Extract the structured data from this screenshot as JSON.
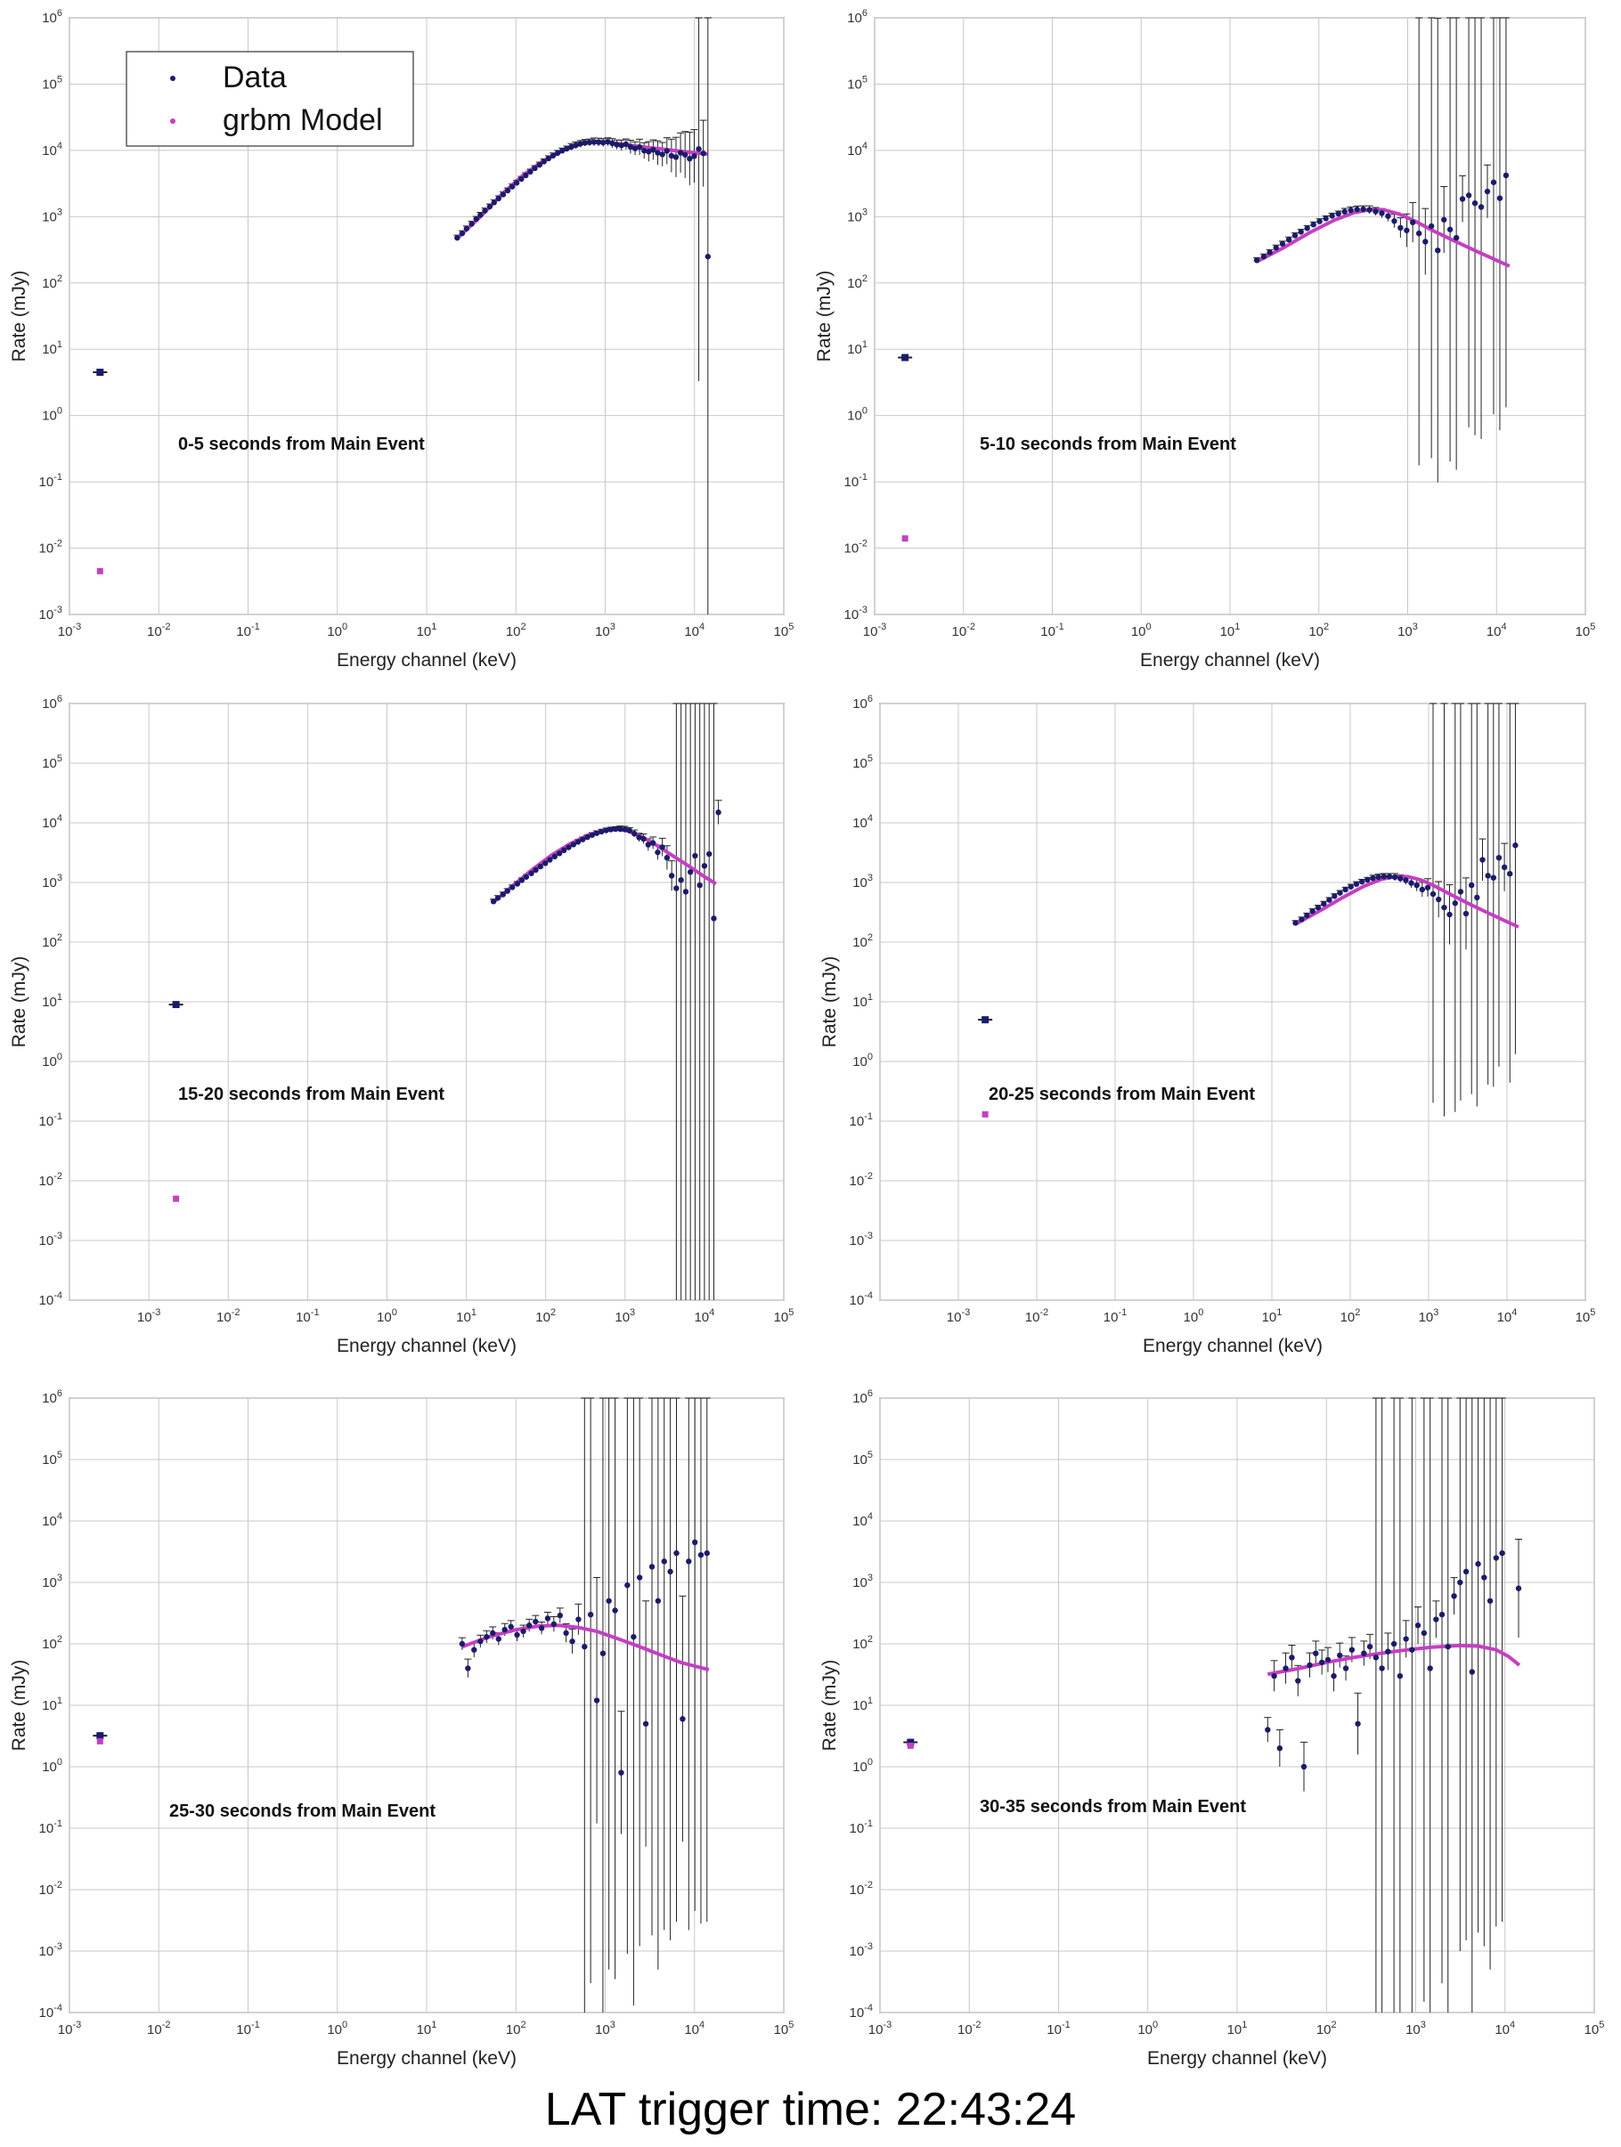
{
  "caption": "LAT trigger time: 22:43:24",
  "colors": {
    "data": "#1b1b6b",
    "model": "#c43fc4",
    "error": "#222222",
    "grid": "#c8c8c8",
    "axis": "#555555"
  },
  "legend": {
    "data_label": "Data",
    "model_label": "grbm Model"
  },
  "chart_data": [
    {
      "type": "scatter",
      "title": "0-5 seconds from Main Event",
      "xlabel": "Energy channel (keV)",
      "ylabel": "Rate (mJy)",
      "xscale": "log",
      "yscale": "log",
      "xlim_exp": [
        -3,
        5
      ],
      "ylim_exp": [
        -3,
        6
      ],
      "x_tick_labels": [
        "10-3",
        "10-2",
        "10-1",
        "100",
        "101",
        "102",
        "103",
        "104",
        "105"
      ],
      "y_tick_labels": [
        "10-3",
        "10-2",
        "10-1",
        "100",
        "101",
        "102",
        "103",
        "104",
        "105",
        "106"
      ],
      "legend": true,
      "isolated_data": [
        {
          "x": 0.0022,
          "y": 4.5
        }
      ],
      "isolated_model": [
        {
          "x": 0.0022,
          "y": 0.0045
        }
      ],
      "data_x": [
        22,
        25,
        28,
        32,
        36,
        40,
        45,
        51,
        57,
        64,
        72,
        81,
        91,
        102,
        115,
        129,
        145,
        163,
        184,
        206,
        232,
        261,
        293,
        330,
        371,
        417,
        469,
        527,
        593,
        667,
        750,
        843,
        948,
        1070,
        1200,
        1350,
        1520,
        1710,
        1920,
        2160,
        2430,
        2730,
        3070,
        3450,
        3880,
        4370,
        4910,
        5520,
        6210,
        6980,
        7850,
        8830,
        9930,
        11170,
        12560,
        14130
      ],
      "data_y": [
        480,
        560,
        660,
        780,
        920,
        1060,
        1230,
        1420,
        1640,
        1880,
        2160,
        2480,
        2840,
        3240,
        3700,
        4200,
        4760,
        5380,
        6060,
        6780,
        7560,
        8340,
        9120,
        9880,
        10600,
        11300,
        11950,
        12550,
        13000,
        13200,
        13400,
        13300,
        13100,
        13500,
        12800,
        12200,
        11900,
        12400,
        11300,
        10700,
        11200,
        9900,
        9600,
        10200,
        9200,
        8700,
        9800,
        8300,
        7900,
        9200,
        8600,
        7500,
        8200,
        10500,
        9000,
        250
      ],
      "data_err": [
        0.04,
        0.04,
        0.04,
        0.04,
        0.04,
        0.04,
        0.04,
        0.04,
        0.04,
        0.04,
        0.04,
        0.04,
        0.04,
        0.04,
        0.04,
        0.04,
        0.04,
        0.04,
        0.04,
        0.04,
        0.04,
        0.04,
        0.04,
        0.04,
        0.04,
        0.05,
        0.05,
        0.05,
        0.05,
        0.05,
        0.06,
        0.06,
        0.06,
        0.06,
        0.07,
        0.07,
        0.08,
        0.08,
        0.1,
        0.1,
        0.12,
        0.12,
        0.15,
        0.15,
        0.18,
        0.18,
        0.2,
        0.25,
        0.3,
        0.3,
        0.35,
        0.4,
        0.4,
        3.5,
        0.5,
        9.0
      ],
      "model_x": [
        22,
        40,
        70,
        120,
        200,
        350,
        550,
        800,
        1100,
        1600,
        2500,
        4000,
        6500,
        10000,
        14000
      ],
      "model_y": [
        470,
        1000,
        2200,
        4200,
        6900,
        10300,
        12700,
        13600,
        13300,
        12300,
        11400,
        10600,
        9800,
        9200,
        8800
      ]
    },
    {
      "type": "scatter",
      "title": "5-10 seconds from Main Event",
      "xlabel": "Energy channel (keV)",
      "ylabel": "Rate (mJy)",
      "xscale": "log",
      "yscale": "log",
      "xlim_exp": [
        -3,
        5
      ],
      "ylim_exp": [
        -3,
        6
      ],
      "x_tick_labels": [
        "10-3",
        "10-2",
        "10-1",
        "100",
        "101",
        "102",
        "103",
        "104",
        "105"
      ],
      "y_tick_labels": [
        "10-3",
        "10-2",
        "10-1",
        "100",
        "101",
        "102",
        "103",
        "104",
        "105",
        "106"
      ],
      "legend": false,
      "isolated_data": [
        {
          "x": 0.0022,
          "y": 7.5
        }
      ],
      "isolated_model": [
        {
          "x": 0.0022,
          "y": 0.014
        }
      ],
      "data_x": [
        20,
        24,
        28,
        33,
        39,
        46,
        54,
        63,
        74,
        87,
        102,
        120,
        141,
        166,
        195,
        229,
        269,
        316,
        371,
        436,
        512,
        601,
        706,
        829,
        974,
        1140,
        1340,
        1580,
        1850,
        2180,
        2560,
        3000,
        3530,
        4140,
        4870,
        5720,
        6720,
        7890,
        9270,
        10890,
        12790
      ],
      "data_y": [
        220,
        250,
        290,
        340,
        390,
        450,
        520,
        590,
        670,
        760,
        850,
        940,
        1030,
        1110,
        1190,
        1250,
        1290,
        1300,
        1270,
        1200,
        1130,
        1020,
        860,
        680,
        620,
        820,
        560,
        420,
        720,
        310,
        900,
        640,
        480,
        1850,
        2100,
        1600,
        1400,
        2400,
        3300,
        1900,
        4200
      ],
      "data_err": [
        0.04,
        0.04,
        0.04,
        0.04,
        0.04,
        0.04,
        0.04,
        0.04,
        0.04,
        0.04,
        0.04,
        0.04,
        0.04,
        0.04,
        0.05,
        0.05,
        0.05,
        0.05,
        0.06,
        0.06,
        0.07,
        0.08,
        0.1,
        0.15,
        0.25,
        0.3,
        3.5,
        0.5,
        3.5,
        3.5,
        0.5,
        3.5,
        3.5,
        0.35,
        3.5,
        3.5,
        3.5,
        0.4,
        3.5,
        3.5,
        3.5
      ],
      "model_x": [
        20,
        40,
        80,
        150,
        250,
        380,
        550,
        800,
        1200,
        2000,
        3500,
        6000,
        10000,
        14000
      ],
      "model_y": [
        210,
        340,
        580,
        890,
        1150,
        1280,
        1260,
        1100,
        860,
        600,
        420,
        300,
        220,
        180
      ]
    },
    {
      "type": "scatter",
      "title": "15-20 seconds from Main Event",
      "xlabel": "Energy channel (keV)",
      "ylabel": "Rate (mJy)",
      "xscale": "log",
      "yscale": "log",
      "xlim_exp": [
        -4,
        5
      ],
      "ylim_exp": [
        -4,
        6
      ],
      "x_tick_labels": [
        "10-3",
        "10-2",
        "10-1",
        "100",
        "101",
        "102",
        "103",
        "104",
        "105"
      ],
      "y_tick_labels": [
        "10-4",
        "10-3",
        "10-2",
        "10-1",
        "100",
        "101",
        "102",
        "103",
        "104",
        "105",
        "106"
      ],
      "legend": false,
      "isolated_data": [
        {
          "x": 0.0022,
          "y": 9
        }
      ],
      "isolated_model": [
        {
          "x": 0.0022,
          "y": 0.005
        }
      ],
      "data_x": [
        22,
        25,
        29,
        33,
        38,
        44,
        50,
        57,
        66,
        75,
        86,
        99,
        113,
        130,
        149,
        170,
        195,
        224,
        256,
        293,
        336,
        385,
        441,
        505,
        578,
        662,
        759,
        869,
        995,
        1140,
        1310,
        1500,
        1710,
        1960,
        2250,
        2580,
        2950,
        3380,
        3870,
        4430,
        5080,
        5820,
        6660,
        7630,
        8740,
        10010,
        11470,
        13140,
        15000
      ],
      "data_y": [
        480,
        550,
        630,
        720,
        830,
        950,
        1090,
        1240,
        1420,
        1620,
        1850,
        2100,
        2400,
        2720,
        3070,
        3460,
        3880,
        4320,
        4790,
        5270,
        5760,
        6240,
        6700,
        7110,
        7460,
        7720,
        7860,
        7880,
        7760,
        7400,
        6600,
        5700,
        5400,
        4300,
        4600,
        3200,
        3900,
        2600,
        1300,
        800,
        1100,
        700,
        1500,
        2800,
        900,
        1900,
        3000,
        250,
        15000
      ],
      "data_err": [
        0.04,
        0.04,
        0.04,
        0.04,
        0.04,
        0.04,
        0.04,
        0.04,
        0.04,
        0.04,
        0.04,
        0.04,
        0.04,
        0.04,
        0.04,
        0.04,
        0.04,
        0.04,
        0.04,
        0.04,
        0.04,
        0.04,
        0.04,
        0.04,
        0.04,
        0.04,
        0.04,
        0.05,
        0.05,
        0.05,
        0.06,
        0.07,
        0.08,
        0.1,
        0.1,
        0.12,
        0.15,
        0.2,
        0.25,
        9,
        9,
        9,
        9,
        9,
        9,
        9,
        9,
        9,
        0.2
      ],
      "model_x": [
        22,
        40,
        70,
        120,
        200,
        350,
        550,
        800,
        1100,
        1600,
        2500,
        4000,
        6500,
        10000,
        14000
      ],
      "model_y": [
        470,
        920,
        1700,
        2900,
        4400,
        6300,
        7500,
        7800,
        7300,
        5900,
        4200,
        2800,
        1850,
        1250,
        950
      ]
    },
    {
      "type": "scatter",
      "title": "20-25 seconds from Main Event",
      "xlabel": "Energy channel (keV)",
      "ylabel": "Rate (mJy)",
      "xscale": "log",
      "yscale": "log",
      "xlim_exp": [
        -4,
        5
      ],
      "ylim_exp": [
        -4,
        6
      ],
      "x_tick_labels": [
        "10-3",
        "10-2",
        "10-1",
        "100",
        "101",
        "102",
        "103",
        "104",
        "105"
      ],
      "y_tick_labels": [
        "10-4",
        "10-3",
        "10-2",
        "10-1",
        "100",
        "101",
        "102",
        "103",
        "104",
        "105",
        "106"
      ],
      "legend": false,
      "isolated_data": [
        {
          "x": 0.0022,
          "y": 5
        }
      ],
      "isolated_model": [
        {
          "x": 0.0022,
          "y": 0.13
        }
      ],
      "data_x": [
        20,
        24,
        28,
        33,
        39,
        46,
        54,
        63,
        74,
        87,
        102,
        120,
        141,
        166,
        195,
        229,
        269,
        316,
        371,
        436,
        512,
        601,
        706,
        829,
        974,
        1140,
        1340,
        1580,
        1850,
        2180,
        2560,
        3000,
        3530,
        4140,
        4870,
        5720,
        6720,
        7890,
        9270,
        10890,
        12790
      ],
      "data_y": [
        210,
        240,
        280,
        330,
        380,
        440,
        510,
        590,
        670,
        760,
        850,
        940,
        1030,
        1110,
        1180,
        1230,
        1260,
        1260,
        1230,
        1170,
        1090,
        980,
        900,
        760,
        820,
        640,
        520,
        380,
        290,
        450,
        700,
        300,
        900,
        560,
        2400,
        1300,
        1200,
        2600,
        1800,
        1400,
        4200
      ],
      "data_err": [
        0.04,
        0.04,
        0.04,
        0.04,
        0.04,
        0.04,
        0.04,
        0.04,
        0.04,
        0.04,
        0.04,
        0.04,
        0.04,
        0.04,
        0.05,
        0.05,
        0.05,
        0.05,
        0.06,
        0.06,
        0.07,
        0.08,
        0.1,
        0.12,
        0.15,
        3.5,
        0.3,
        3.5,
        0.5,
        3.5,
        3.5,
        0.6,
        3.5,
        3.5,
        0.35,
        3.5,
        3.5,
        3.5,
        0.4,
        3.5,
        3.5
      ],
      "model_x": [
        20,
        40,
        80,
        150,
        250,
        380,
        550,
        800,
        1200,
        2000,
        3500,
        6000,
        10000,
        14000
      ],
      "model_y": [
        200,
        330,
        560,
        870,
        1130,
        1260,
        1250,
        1100,
        870,
        610,
        420,
        300,
        220,
        180
      ]
    },
    {
      "type": "scatter",
      "title": "25-30 seconds from Main Event",
      "xlabel": "Energy channel (keV)",
      "ylabel": "Rate (mJy)",
      "xscale": "log",
      "yscale": "log",
      "xlim_exp": [
        -3,
        5
      ],
      "ylim_exp": [
        -4,
        6
      ],
      "x_tick_labels": [
        "10-3",
        "10-2",
        "10-1",
        "100",
        "101",
        "102",
        "103",
        "104",
        "105"
      ],
      "y_tick_labels": [
        "10-4",
        "10-3",
        "10-2",
        "10-1",
        "100",
        "101",
        "102",
        "103",
        "104",
        "105",
        "106"
      ],
      "legend": false,
      "isolated_data": [
        {
          "x": 0.0022,
          "y": 3.2
        }
      ],
      "isolated_model": [
        {
          "x": 0.0022,
          "y": 2.6
        }
      ],
      "data_x": [
        25,
        29,
        34,
        40,
        47,
        55,
        64,
        75,
        88,
        103,
        121,
        141,
        166,
        194,
        227,
        266,
        312,
        365,
        428,
        501,
        587,
        687,
        805,
        943,
        1100,
        1290,
        1510,
        1770,
        2080,
        2430,
        2850,
        3340,
        3910,
        4580,
        5360,
        6280,
        7360,
        8620,
        10100,
        11800,
        13800
      ],
      "data_y": [
        100,
        40,
        80,
        110,
        130,
        150,
        120,
        170,
        190,
        140,
        160,
        200,
        230,
        180,
        260,
        210,
        290,
        150,
        110,
        250,
        90,
        300,
        12,
        70,
        500,
        350,
        0.8,
        900,
        130,
        1200,
        5,
        1800,
        500,
        2200,
        1500,
        3000,
        6,
        2200,
        4500,
        2800,
        3000
      ],
      "data_err": [
        0.1,
        0.15,
        0.12,
        0.1,
        0.1,
        0.1,
        0.1,
        0.1,
        0.1,
        0.1,
        0.1,
        0.1,
        0.1,
        0.1,
        0.1,
        0.12,
        0.12,
        0.15,
        0.2,
        0.25,
        6,
        6,
        2,
        6,
        6,
        6,
        1,
        6,
        6,
        6,
        2,
        6,
        6,
        6,
        6,
        6,
        2,
        6,
        6,
        6,
        6
      ],
      "model_x": [
        25,
        50,
        100,
        180,
        300,
        500,
        800,
        1300,
        2200,
        4000,
        7000,
        11000,
        14500
      ],
      "model_y": [
        90,
        130,
        170,
        195,
        200,
        185,
        160,
        125,
        95,
        68,
        50,
        42,
        38
      ]
    },
    {
      "type": "scatter",
      "title": "30-35 seconds from Main Event",
      "xlabel": "Energy channel (keV)",
      "ylabel": "Rate (mJy)",
      "xscale": "log",
      "yscale": "log",
      "xlim_exp": [
        -3,
        5
      ],
      "ylim_exp": [
        -4,
        6
      ],
      "x_tick_labels": [
        "10-3",
        "10-2",
        "10-1",
        "100",
        "101",
        "102",
        "103",
        "104",
        "105"
      ],
      "y_tick_labels": [
        "10-4",
        "10-3",
        "10-2",
        "10-1",
        "100",
        "101",
        "102",
        "103",
        "104",
        "105",
        "106"
      ],
      "legend": false,
      "isolated_data": [
        {
          "x": 0.0022,
          "y": 2.5
        }
      ],
      "isolated_model": [
        {
          "x": 0.0022,
          "y": 2.2
        }
      ],
      "data_x": [
        22,
        26,
        30,
        35,
        41,
        48,
        56,
        65,
        76,
        89,
        104,
        121,
        141,
        165,
        193,
        225,
        263,
        307,
        359,
        419,
        489,
        571,
        667,
        779,
        909,
        1060,
        1240,
        1450,
        1690,
        1970,
        2300,
        2690,
        3140,
        3670,
        4280,
        5000,
        5840,
        6820,
        7960,
        9300,
        14200
      ],
      "data_y": [
        4,
        30,
        2,
        40,
        60,
        25,
        1,
        45,
        70,
        50,
        55,
        30,
        65,
        40,
        80,
        5,
        70,
        90,
        60,
        40,
        75,
        100,
        30,
        120,
        80,
        200,
        150,
        40,
        250,
        300,
        90,
        600,
        1000,
        1500,
        35,
        2000,
        1200,
        500,
        2500,
        3000,
        800
      ],
      "data_err": [
        0.2,
        0.25,
        0.3,
        0.25,
        0.2,
        0.25,
        0.4,
        0.2,
        0.2,
        0.2,
        0.2,
        0.25,
        0.2,
        0.2,
        0.2,
        0.5,
        0.2,
        0.2,
        6,
        6,
        0.3,
        6,
        6,
        0.3,
        6,
        0.3,
        6,
        6,
        0.3,
        6,
        6,
        0.3,
        6,
        6,
        6,
        6,
        6,
        6,
        6,
        6,
        0.8
      ],
      "model_x": [
        22,
        50,
        100,
        200,
        400,
        800,
        1500,
        3000,
        5000,
        8000,
        11000,
        14500
      ],
      "model_y": [
        32,
        40,
        50,
        60,
        70,
        80,
        88,
        94,
        92,
        80,
        62,
        45
      ]
    }
  ]
}
